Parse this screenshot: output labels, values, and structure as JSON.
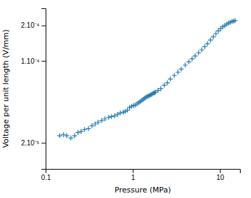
{
  "chart_data": {
    "type": "scatter",
    "xlabel": "Pressure (MPa)",
    "ylabel": "Voltage per unit length (V/mm)",
    "log": true,
    "marker": "plus",
    "xlim": [
      0.1,
      17
    ],
    "ylim": [
      1.2e-05,
      0.00028
    ],
    "xticks": [
      0.1,
      1,
      10
    ],
    "yticks": [
      {
        "value": 2e-05,
        "label": "2.10⁻⁵"
      },
      {
        "value": 0.0001,
        "label": "1.10⁻⁴"
      },
      {
        "value": 0.0002,
        "label": "2.10⁻⁴"
      }
    ],
    "x": [
      0.145,
      0.16,
      0.175,
      0.195,
      0.215,
      0.235,
      0.255,
      0.28,
      0.31,
      0.34,
      0.37,
      0.4,
      0.44,
      0.48,
      0.53,
      0.57,
      0.62,
      0.67,
      0.72,
      0.78,
      0.82,
      0.87,
      0.92,
      0.97,
      1.02,
      1.07,
      1.12,
      1.17,
      1.22,
      1.27,
      1.32,
      1.37,
      1.42,
      1.47,
      1.52,
      1.57,
      1.62,
      1.67,
      1.72,
      1.77,
      1.82,
      1.95,
      2.1,
      2.3,
      2.5,
      2.7,
      3.0,
      3.3,
      3.6,
      4.0,
      4.4,
      4.8,
      5.2,
      5.7,
      6.2,
      6.7,
      7.2,
      7.8,
      8.4,
      9.0,
      9.6,
      10.2,
      10.8,
      11.4,
      12.0,
      12.6,
      13.2,
      13.8,
      14.4,
      15.0
    ],
    "values": [
      2.3e-05,
      2.35e-05,
      2.3e-05,
      2.2e-05,
      2.3e-05,
      2.45e-05,
      2.5e-05,
      2.6e-05,
      2.65e-05,
      2.8e-05,
      2.9e-05,
      3e-05,
      3.1e-05,
      3.2e-05,
      3.3e-05,
      3.35e-05,
      3.4e-05,
      3.5e-05,
      3.6e-05,
      3.65e-05,
      3.7e-05,
      3.8e-05,
      4e-05,
      4.1e-05,
      4.15e-05,
      4.2e-05,
      4.3e-05,
      4.4e-05,
      4.5e-05,
      4.6e-05,
      4.7e-05,
      4.8e-05,
      4.9e-05,
      5e-05,
      5e-05,
      5.1e-05,
      5.15e-05,
      5.2e-05,
      5.3e-05,
      5.35e-05,
      5.4e-05,
      5.6e-05,
      5.8e-05,
      6.2e-05,
      6.5e-05,
      7e-05,
      7.5e-05,
      8e-05,
      8.5e-05,
      9.2e-05,
      9.8e-05,
      0.000104,
      0.00011,
      0.000117,
      0.000124,
      0.000132,
      0.00014,
      0.00015,
      0.00016,
      0.00017,
      0.00018,
      0.000188,
      0.000195,
      0.0002,
      0.000205,
      0.00021,
      0.000213,
      0.000216,
      0.000218,
      0.00022
    ]
  }
}
